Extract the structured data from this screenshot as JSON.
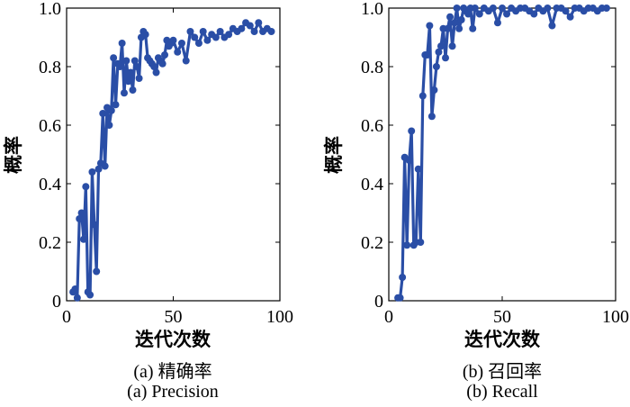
{
  "chart_data": [
    {
      "type": "line",
      "xlabel": "迭代次数",
      "ylabel": "概率",
      "xlim": [
        0,
        100
      ],
      "ylim": [
        0,
        1.0
      ],
      "xticks": [
        "0",
        "50",
        "100"
      ],
      "yticks": [
        "0",
        "0.2",
        "0.4",
        "0.6",
        "0.8",
        "1.0"
      ],
      "caption_cn": "(a) 精确率",
      "caption_en": "(a) Precision",
      "color": "#2a4ea6",
      "grid": false,
      "series": [
        {
          "x": [
            3,
            4,
            5,
            6,
            7,
            8,
            9,
            10,
            11,
            12,
            13,
            14,
            15,
            16,
            17,
            18,
            19,
            20,
            21,
            22,
            23,
            24,
            25,
            26,
            27,
            28,
            29,
            30,
            31,
            32,
            33,
            34,
            35,
            36,
            37,
            38,
            39,
            40,
            41,
            42,
            43,
            44,
            45,
            46,
            47,
            48,
            49,
            50,
            52,
            54,
            56,
            58,
            60,
            62,
            64,
            66,
            68,
            70,
            72,
            74,
            76,
            78,
            80,
            82,
            84,
            86,
            88,
            90,
            92,
            94,
            96
          ],
          "y": [
            0.03,
            0.04,
            0.01,
            0.28,
            0.3,
            0.21,
            0.39,
            0.03,
            0.02,
            0.44,
            0.26,
            0.1,
            0.45,
            0.47,
            0.64,
            0.46,
            0.66,
            0.6,
            0.65,
            0.83,
            0.67,
            0.81,
            0.8,
            0.88,
            0.71,
            0.82,
            0.75,
            0.78,
            0.72,
            0.82,
            0.8,
            0.76,
            0.9,
            0.92,
            0.91,
            0.83,
            0.82,
            0.81,
            0.8,
            0.78,
            0.83,
            0.82,
            0.81,
            0.84,
            0.89,
            0.87,
            0.88,
            0.89,
            0.85,
            0.88,
            0.82,
            0.92,
            0.9,
            0.88,
            0.92,
            0.89,
            0.91,
            0.9,
            0.92,
            0.9,
            0.91,
            0.93,
            0.92,
            0.93,
            0.95,
            0.94,
            0.92,
            0.95,
            0.92,
            0.93,
            0.92
          ]
        }
      ]
    },
    {
      "type": "line",
      "xlabel": "迭代次数",
      "ylabel": "概率",
      "xlim": [
        0,
        100
      ],
      "ylim": [
        0,
        1.0
      ],
      "xticks": [
        "0",
        "50",
        "100"
      ],
      "yticks": [
        "0",
        "0.2",
        "0.4",
        "0.6",
        "0.8",
        "1.0"
      ],
      "caption_cn": "(b) 召回率",
      "caption_en": "(b) Recall",
      "color": "#2a4ea6",
      "grid": false,
      "series": [
        {
          "x": [
            4,
            5,
            6,
            7,
            8,
            9,
            10,
            11,
            12,
            13,
            14,
            15,
            16,
            17,
            18,
            19,
            20,
            21,
            22,
            23,
            24,
            25,
            26,
            27,
            28,
            29,
            30,
            31,
            32,
            33,
            34,
            35,
            36,
            37,
            38,
            40,
            42,
            44,
            46,
            48,
            50,
            52,
            54,
            56,
            58,
            60,
            62,
            64,
            66,
            68,
            70,
            72,
            74,
            76,
            78,
            80,
            82,
            84,
            86,
            88,
            90,
            92,
            94,
            96
          ],
          "y": [
            0.01,
            0.01,
            0.08,
            0.49,
            0.19,
            0.48,
            0.58,
            0.19,
            0.2,
            0.45,
            0.2,
            0.7,
            0.84,
            0.84,
            0.94,
            0.63,
            0.72,
            0.8,
            0.85,
            0.87,
            0.93,
            0.83,
            0.93,
            0.97,
            0.87,
            0.95,
            1.0,
            0.93,
            0.96,
            1.0,
            0.99,
            0.98,
            1.0,
            0.93,
            1.0,
            0.98,
            1.0,
            0.99,
            1.0,
            0.95,
            1.0,
            0.98,
            1.0,
            0.99,
            1.0,
            1.0,
            0.99,
            0.98,
            1.0,
            0.99,
            1.0,
            0.94,
            1.0,
            1.0,
            0.99,
            0.97,
            1.0,
            1.0,
            0.99,
            1.0,
            1.0,
            0.99,
            1.0,
            1.0
          ]
        }
      ]
    }
  ]
}
